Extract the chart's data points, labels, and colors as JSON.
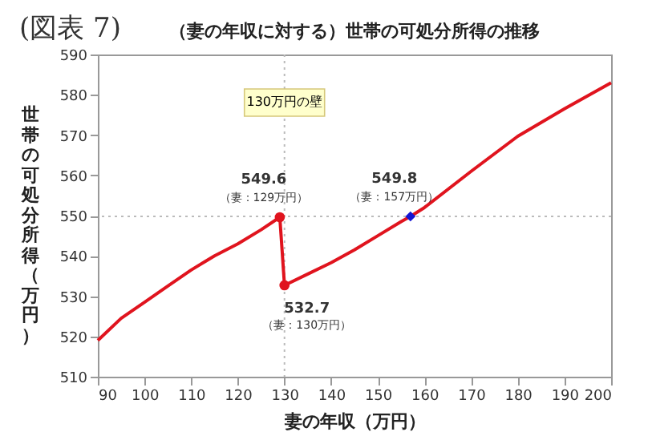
{
  "chart_data": {
    "type": "line",
    "title": "(図表 7)",
    "subtitle": "（妻の年収に対する）世帯の可処分所得の推移",
    "xlabel": "妻の年収（万円）",
    "ylabel": "世帯の可処分所得（万円）",
    "xlim": [
      90,
      200
    ],
    "xticks": [
      90,
      100,
      110,
      120,
      130,
      140,
      150,
      160,
      170,
      180,
      190,
      200
    ],
    "ylim": [
      510,
      590
    ],
    "yticks": [
      510,
      520,
      530,
      540,
      550,
      560,
      570,
      580,
      590
    ],
    "grid": false,
    "line_style": "solid",
    "series": [
      {
        "color": "#e0141e",
        "x": [
          90,
          95,
          100,
          105,
          110,
          115,
          120,
          125,
          129,
          130,
          135,
          140,
          145,
          150,
          155,
          157,
          160,
          170,
          180,
          190,
          200
        ],
        "values": [
          519,
          524.5,
          528.5,
          532.5,
          536.5,
          540,
          543,
          546.5,
          549.6,
          532.7,
          535.5,
          538.3,
          541.5,
          545,
          548.5,
          549.8,
          552,
          561,
          569.7,
          576.5,
          583
        ]
      },
      {
        "type": "scatter",
        "color": "#e0141e",
        "x": [
          129,
          130
        ],
        "values": [
          549.6,
          532.7
        ]
      },
      {
        "type": "scatter",
        "color": "#1414d2",
        "x": [
          157
        ],
        "values": [
          549.8
        ]
      }
    ],
    "ref_lines": [
      {
        "axis": "x",
        "value": 130,
        "label": "130万円の壁",
        "color": "#bbbbbb",
        "line_style": "dotted"
      },
      {
        "axis": "y",
        "value": 549.8,
        "color": "#bbbbbb",
        "line_style": "dotted"
      }
    ],
    "annotations": [
      {
        "text": "549.6",
        "x": 129,
        "y": 549.6
      },
      {
        "text": "（妻：129万円）",
        "x": 129,
        "y": 549.6
      },
      {
        "text": "532.7",
        "x": 130,
        "y": 532.7
      },
      {
        "text": "（妻：130万円）",
        "x": 130,
        "y": 532.7
      },
      {
        "text": "549.8",
        "x": 157,
        "y": 549.8
      },
      {
        "text": "（妻：157万円）",
        "x": 157,
        "y": 549.8
      }
    ]
  }
}
